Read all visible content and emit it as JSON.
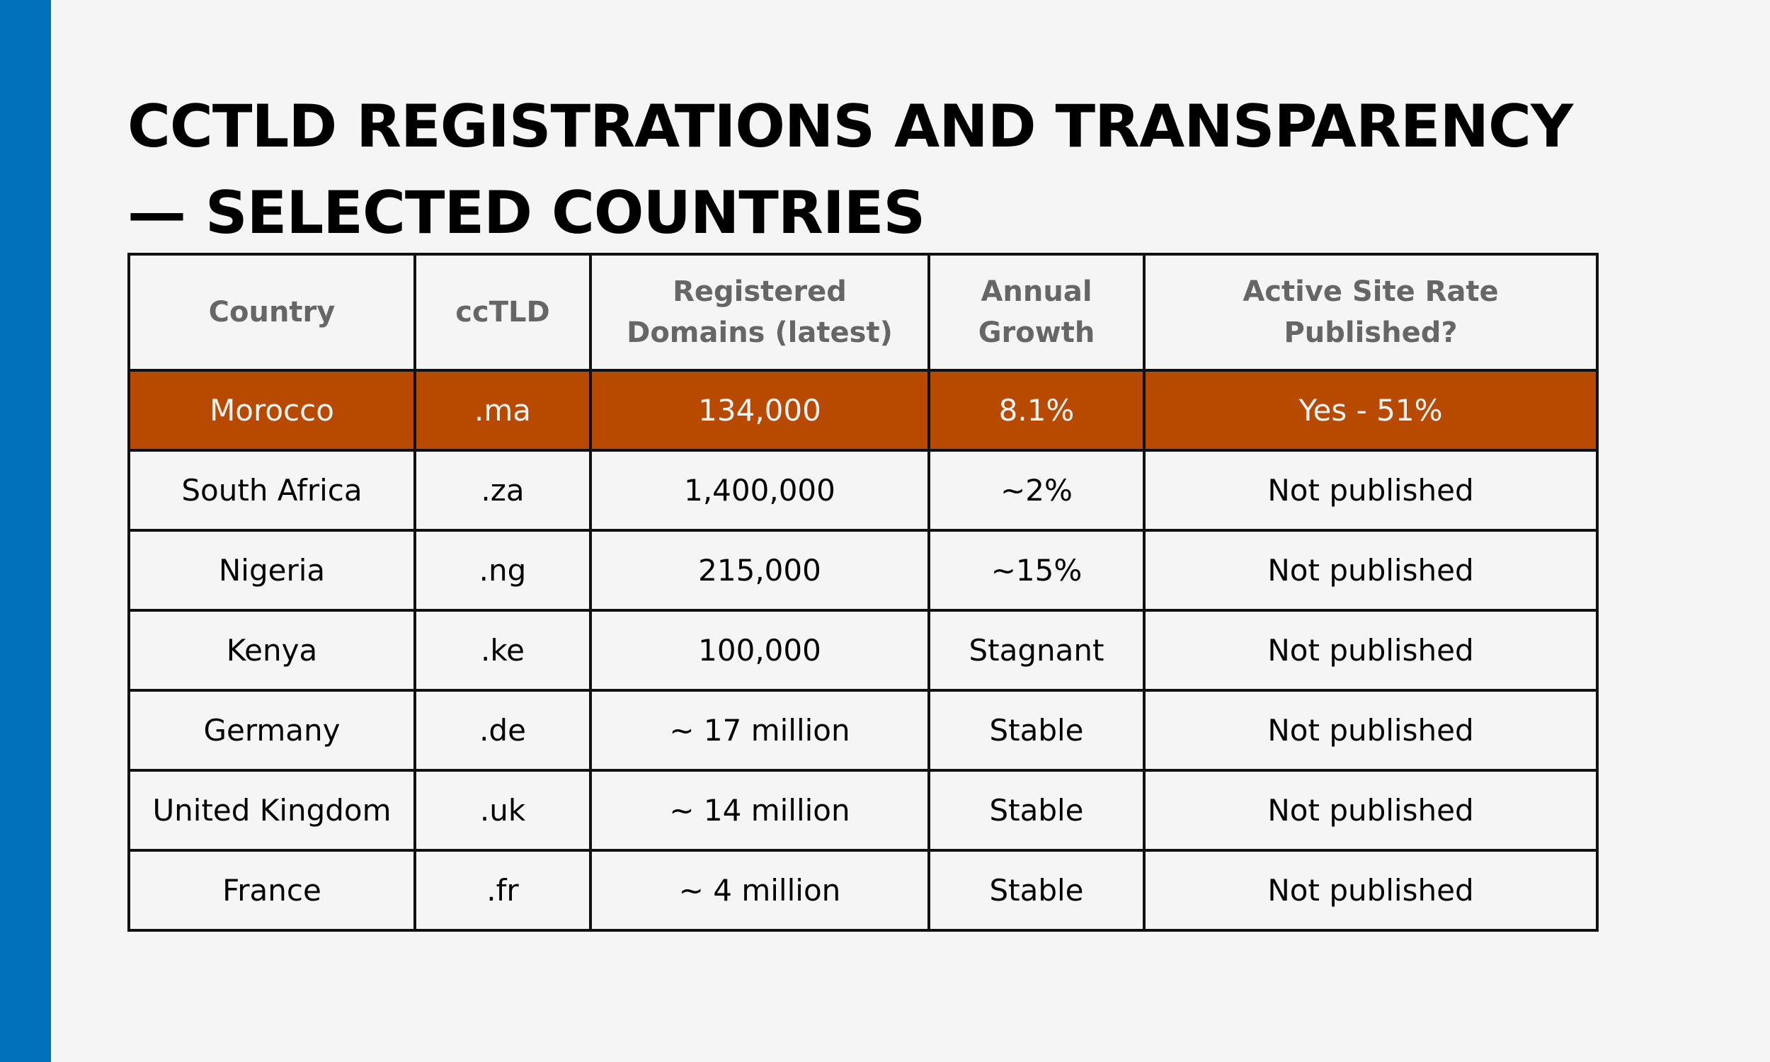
{
  "title": "ccTLD REGISTRATIONS AND TRANSPARENCY — SELECTED COUNTRIES",
  "colors": {
    "accent_bar": "#0070bb",
    "highlight_row": "#b84a00",
    "background": "#f5f5f5",
    "header_text": "#666666"
  },
  "table": {
    "headers": [
      "Country",
      "ccTLD",
      "Registered Domains (latest)",
      "Annual Growth",
      "Active Site Rate Published?"
    ],
    "rows": [
      [
        "Morocco",
        ".ma",
        "134,000",
        "8.1%",
        "Yes - 51%"
      ],
      [
        "South Africa",
        ".za",
        "1,400,000",
        "~2%",
        "Not published"
      ],
      [
        "Nigeria",
        ".ng",
        "215,000",
        "~15%",
        "Not published"
      ],
      [
        "Kenya",
        ".ke",
        "100,000",
        "Stagnant",
        "Not published"
      ],
      [
        "Germany",
        ".de",
        "~ 17 million",
        "Stable",
        "Not published"
      ],
      [
        "United Kingdom",
        ".uk",
        "~ 14 million",
        "Stable",
        "Not published"
      ],
      [
        "France",
        ".fr",
        "~ 4 million",
        "Stable",
        "Not published"
      ]
    ]
  }
}
